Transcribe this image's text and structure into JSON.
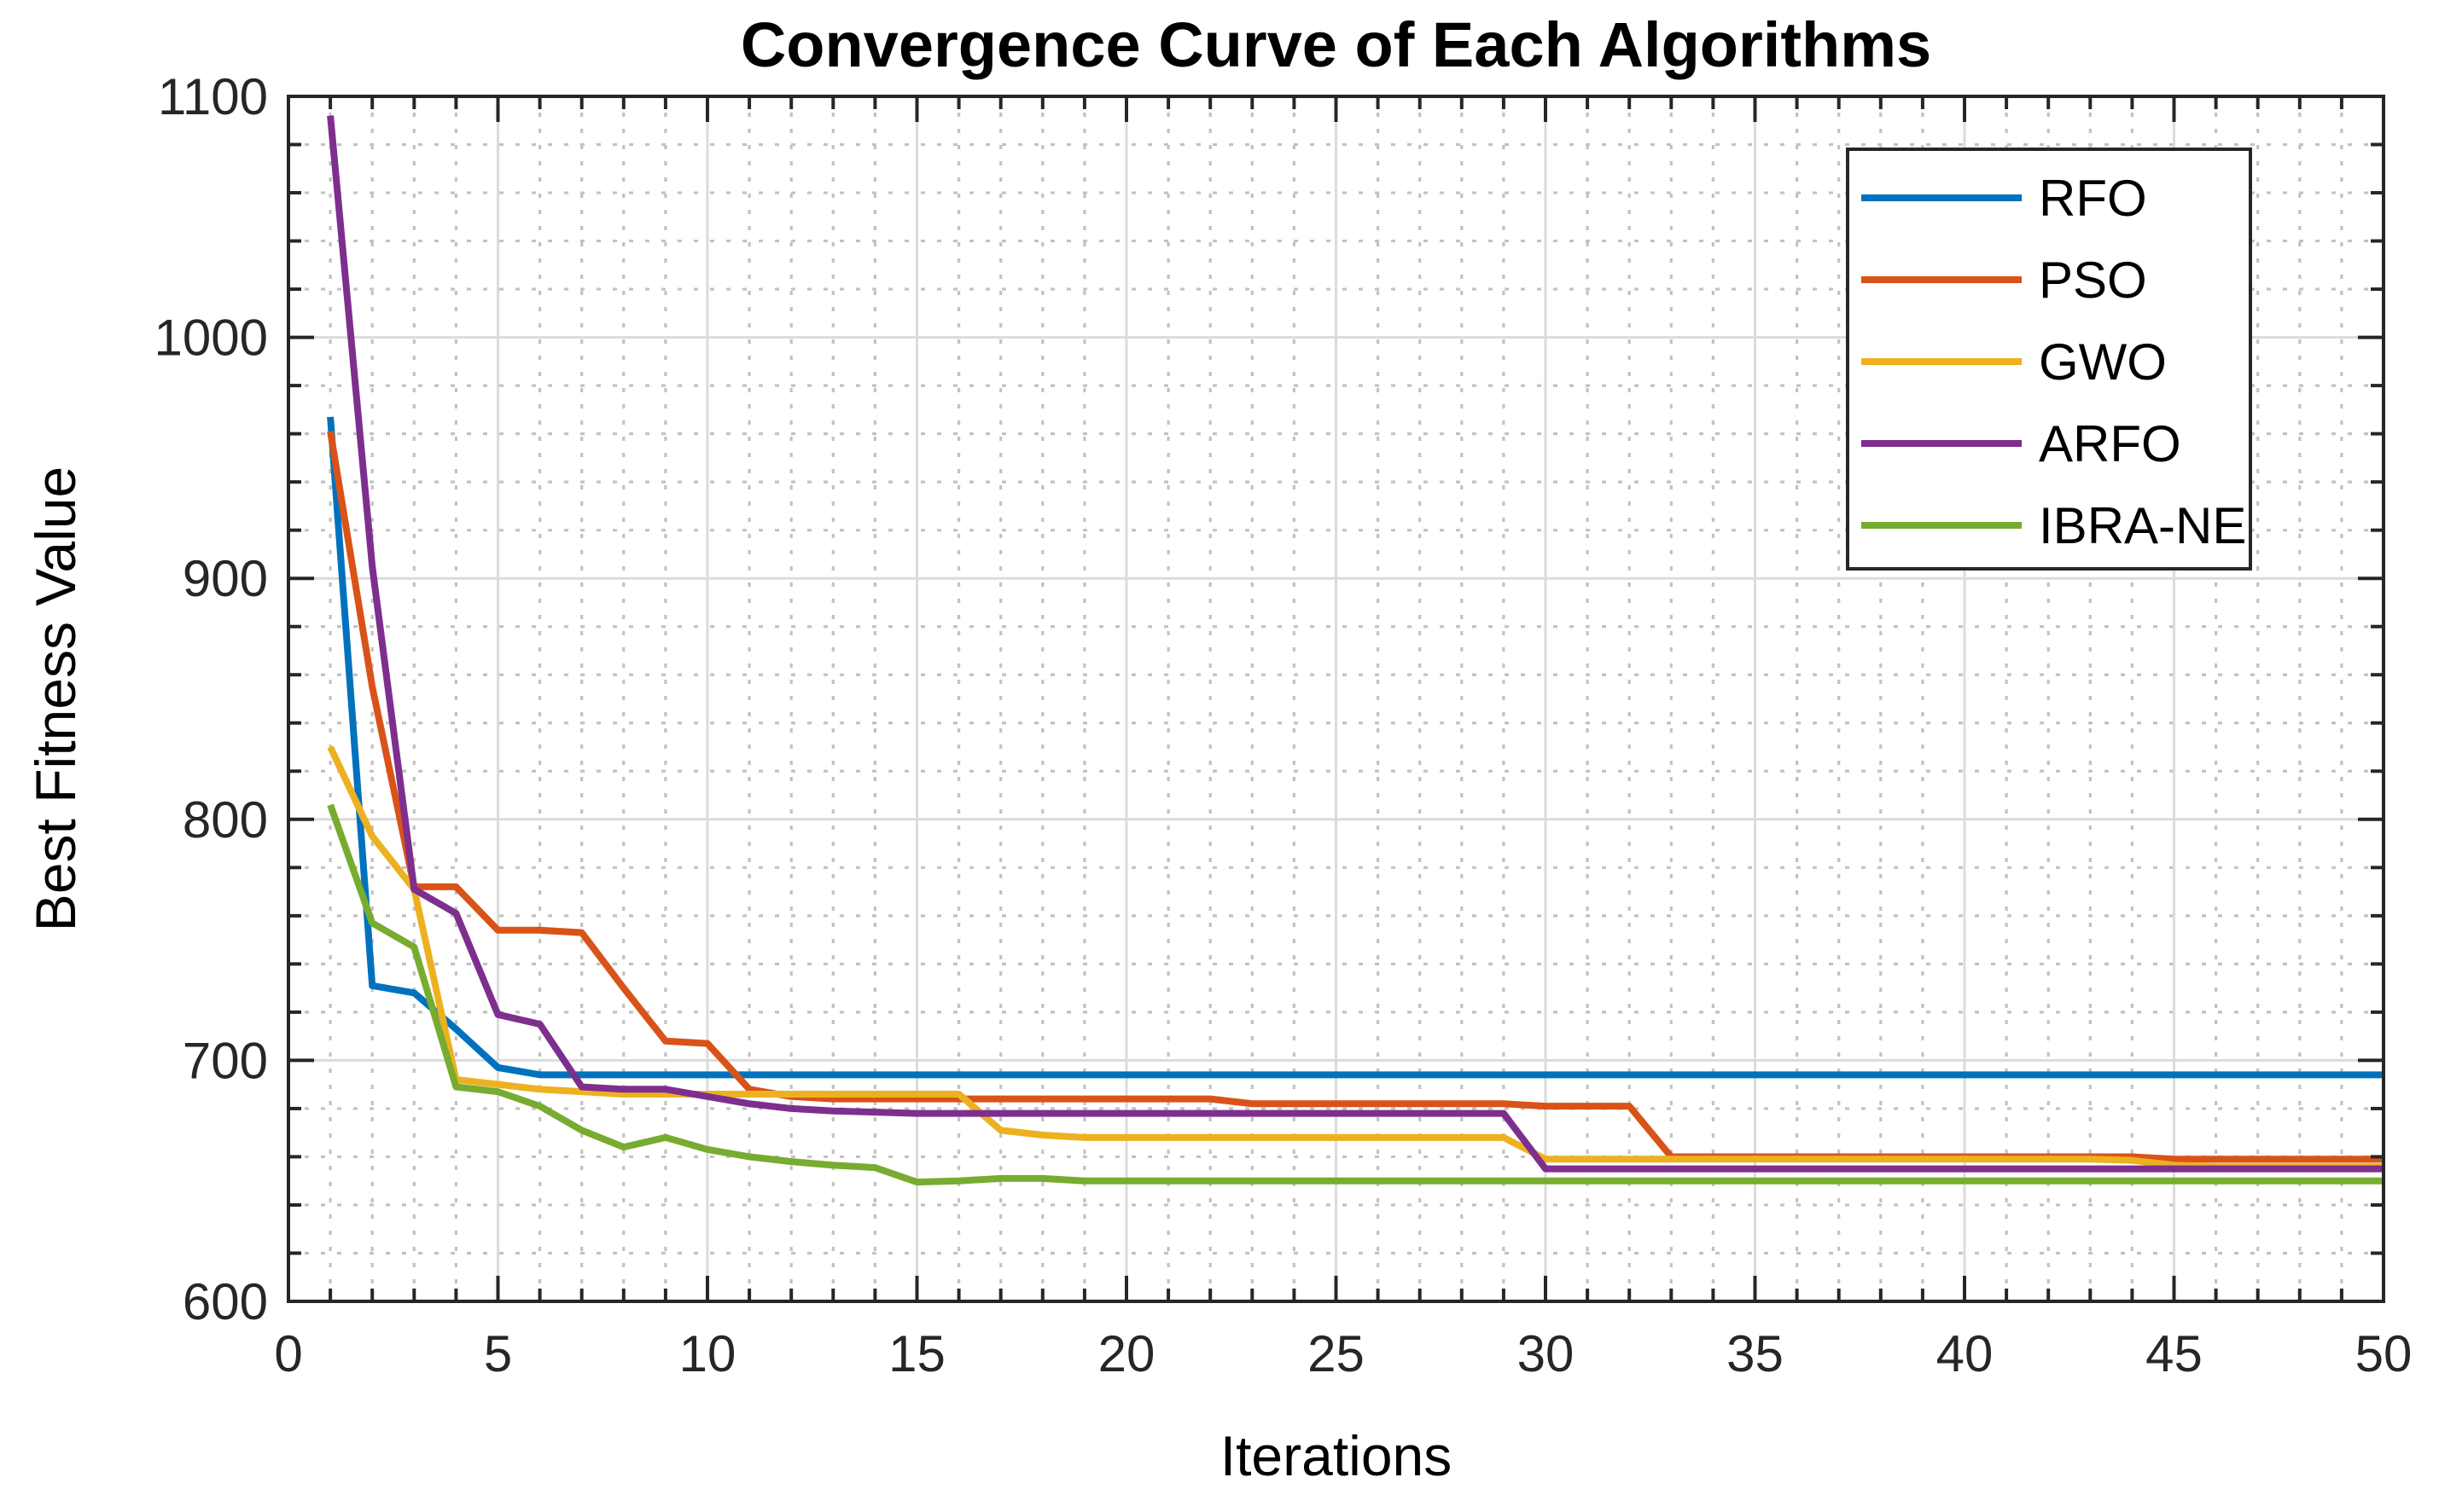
{
  "chart_data": {
    "type": "line",
    "title": "Convergence Curve of Each Algorithms",
    "xlabel": "Iterations",
    "ylabel": "Best Fitness Value",
    "xlim": [
      0,
      50
    ],
    "ylim": [
      600,
      1100
    ],
    "x_ticks": [
      0,
      5,
      10,
      15,
      20,
      25,
      30,
      35,
      40,
      45,
      50
    ],
    "y_ticks": [
      600,
      700,
      800,
      900,
      1000,
      1100
    ],
    "x_minor_step": 1,
    "y_minor_step": 20,
    "grid": "major-solid-minor-dotted",
    "legend_position": "northeast",
    "axis_color": "#262626",
    "major_grid_color": "#dbdbdb",
    "minor_grid_color": "#c2c2c2",
    "x": [
      1,
      2,
      3,
      4,
      5,
      6,
      7,
      8,
      9,
      10,
      11,
      12,
      13,
      14,
      15,
      16,
      17,
      18,
      19,
      20,
      21,
      22,
      23,
      24,
      25,
      26,
      27,
      28,
      29,
      30,
      31,
      32,
      33,
      34,
      35,
      36,
      37,
      38,
      39,
      40,
      41,
      42,
      43,
      44,
      45,
      46,
      47,
      48,
      49,
      50
    ],
    "series": [
      {
        "name": "RFO",
        "color": "#0072BD",
        "values": [
          967,
          731,
          728,
          713,
          697,
          694,
          694,
          694,
          694,
          694,
          694,
          694,
          694,
          694,
          694,
          694,
          694,
          694,
          694,
          694,
          694,
          694,
          694,
          694,
          694,
          694,
          694,
          694,
          694,
          694,
          694,
          694,
          694,
          694,
          694,
          694,
          694,
          694,
          694,
          694,
          694,
          694,
          694,
          694,
          694,
          694,
          694,
          694,
          694,
          694
        ]
      },
      {
        "name": "PSO",
        "color": "#D95319",
        "values": [
          961,
          855,
          772,
          772,
          754,
          754,
          753,
          730,
          708,
          707,
          688,
          685,
          684,
          684,
          684,
          684,
          684,
          684,
          684,
          684,
          684,
          684,
          682,
          682,
          682,
          682,
          682,
          682,
          682,
          681,
          681,
          681,
          660,
          660,
          660,
          660,
          660,
          660,
          660,
          660,
          660,
          660,
          660,
          660,
          659,
          659,
          659,
          659,
          659,
          659
        ]
      },
      {
        "name": "GWO",
        "color": "#EDB120",
        "values": [
          830,
          793,
          771,
          692,
          690,
          688,
          687,
          686,
          686,
          686,
          686,
          686,
          686,
          686,
          686,
          686,
          671,
          669,
          668,
          668,
          668,
          668,
          668,
          668,
          668,
          668,
          668,
          668,
          668,
          659,
          659,
          659,
          659,
          659,
          659,
          659,
          659,
          659,
          659,
          659,
          659,
          659,
          659,
          658.5,
          656.5,
          656,
          656,
          656,
          656,
          656
        ]
      },
      {
        "name": "ARFO",
        "color": "#7E2F8E",
        "values": [
          1092,
          905,
          771,
          761,
          719,
          715,
          689,
          688,
          688,
          685,
          682,
          680,
          679,
          678.5,
          678,
          678,
          678,
          678,
          678,
          678,
          678,
          678,
          678,
          678,
          678,
          678,
          678,
          678,
          678,
          655,
          655,
          655,
          655,
          655,
          655,
          655,
          655,
          655,
          655,
          655,
          655,
          655,
          655,
          655,
          655,
          655,
          655,
          655,
          655,
          655
        ]
      },
      {
        "name": "IBRA-NE",
        "color": "#77AC30",
        "values": [
          806,
          757,
          747,
          689,
          687,
          681,
          671,
          664,
          668,
          663,
          660,
          658,
          656.5,
          655.5,
          649.5,
          650,
          651,
          651,
          650,
          650,
          650,
          650,
          650,
          650,
          650,
          650,
          650,
          650,
          650,
          650,
          650,
          650,
          650,
          650,
          650,
          650,
          650,
          650,
          650,
          650,
          650,
          650,
          650,
          650,
          650,
          650,
          650,
          650,
          650,
          650
        ]
      }
    ]
  }
}
